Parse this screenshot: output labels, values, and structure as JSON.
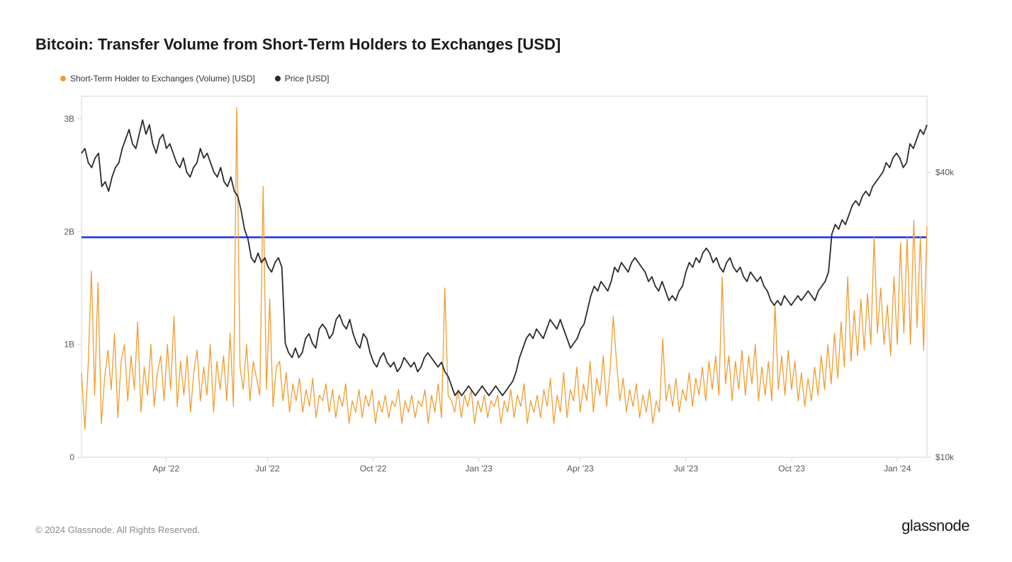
{
  "title": "Bitcoin: Transfer Volume from Short-Term Holders to Exchanges [USD]",
  "legend": {
    "series1": {
      "label": "Short-Term Holder to Exchanges (Volume) [USD]",
      "color": "#f29b2e"
    },
    "series2": {
      "label": "Price [USD]",
      "color": "#2a2a2a"
    }
  },
  "copyright": "© 2024 Glassnode. All Rights Reserved.",
  "brand": "glassnode",
  "chart": {
    "type": "line-dual-axis",
    "background_color": "#ffffff",
    "grid_color": "#d6d6d6",
    "reference_line": {
      "y_value_left": 1.95,
      "color": "#1a2ef5",
      "width": 2.5
    },
    "x_axis": {
      "ticks": [
        "Apr '22",
        "Jul '22",
        "Oct '22",
        "Jan '23",
        "Apr '23",
        "Jul '23",
        "Oct '23",
        "Jan '24"
      ],
      "tick_positions": [
        0.1,
        0.22,
        0.345,
        0.47,
        0.59,
        0.715,
        0.84,
        0.965
      ]
    },
    "y_left": {
      "label_suffix": "B",
      "min": 0,
      "max": 3.2,
      "ticks": [
        0,
        1,
        2,
        3
      ],
      "tick_labels": [
        "0",
        "1B",
        "2B",
        "3B"
      ]
    },
    "y_right": {
      "min": 10000,
      "max": 48000,
      "ticks": [
        10000,
        40000
      ],
      "tick_labels": [
        "$10k",
        "$40k"
      ]
    },
    "series_volume": {
      "color": "#f29b2e",
      "line_width": 1.3,
      "values": [
        0.75,
        0.25,
        0.8,
        1.65,
        0.55,
        1.55,
        0.3,
        0.7,
        0.95,
        0.6,
        1.1,
        0.35,
        0.85,
        1.0,
        0.5,
        0.9,
        0.6,
        1.2,
        0.4,
        0.8,
        0.55,
        1.0,
        0.45,
        0.75,
        0.9,
        0.5,
        1.0,
        0.6,
        1.25,
        0.45,
        0.85,
        0.55,
        0.9,
        0.4,
        0.75,
        0.95,
        0.5,
        0.8,
        0.55,
        1.0,
        0.4,
        0.85,
        0.6,
        0.9,
        0.5,
        1.1,
        0.45,
        3.1,
        0.8,
        0.6,
        1.0,
        0.5,
        0.85,
        0.7,
        0.55,
        2.4,
        0.6,
        1.4,
        0.45,
        0.8,
        0.85,
        0.5,
        0.75,
        0.4,
        0.65,
        0.5,
        0.7,
        0.4,
        0.6,
        0.45,
        0.7,
        0.35,
        0.55,
        0.5,
        0.65,
        0.4,
        0.6,
        0.35,
        0.55,
        0.45,
        0.65,
        0.3,
        0.5,
        0.4,
        0.6,
        0.35,
        0.55,
        0.45,
        0.6,
        0.3,
        0.5,
        0.4,
        0.55,
        0.35,
        0.5,
        0.45,
        0.6,
        0.3,
        0.5,
        0.4,
        0.55,
        0.35,
        0.5,
        0.45,
        0.6,
        0.3,
        0.55,
        0.4,
        0.65,
        0.35,
        1.5,
        0.55,
        0.5,
        0.4,
        0.6,
        0.35,
        0.55,
        0.45,
        0.6,
        0.3,
        0.5,
        0.4,
        0.55,
        0.35,
        0.5,
        0.45,
        0.55,
        0.3,
        0.5,
        0.4,
        0.6,
        0.35,
        0.55,
        0.45,
        0.65,
        0.3,
        0.5,
        0.4,
        0.55,
        0.35,
        0.6,
        0.45,
        0.7,
        0.3,
        0.55,
        0.4,
        0.75,
        0.35,
        0.6,
        0.5,
        0.8,
        0.4,
        0.65,
        0.5,
        0.85,
        0.4,
        0.7,
        0.55,
        0.9,
        0.45,
        0.75,
        1.25,
        0.85,
        0.5,
        0.7,
        0.4,
        0.6,
        0.45,
        0.65,
        0.35,
        0.55,
        0.4,
        0.6,
        0.3,
        0.5,
        0.4,
        1.05,
        0.5,
        0.65,
        0.45,
        0.7,
        0.4,
        0.6,
        0.5,
        0.75,
        0.45,
        0.7,
        0.55,
        0.8,
        0.5,
        0.85,
        0.6,
        0.9,
        0.55,
        1.6,
        0.65,
        0.9,
        0.5,
        0.85,
        0.6,
        0.95,
        0.55,
        0.9,
        0.65,
        1.0,
        0.5,
        0.8,
        0.55,
        0.85,
        0.5,
        1.35,
        0.6,
        0.9,
        0.55,
        0.95,
        0.6,
        0.85,
        0.5,
        0.75,
        0.45,
        0.7,
        0.5,
        0.8,
        0.55,
        0.9,
        0.6,
        1.0,
        0.65,
        1.1,
        0.7,
        1.2,
        0.8,
        1.6,
        0.85,
        1.3,
        0.9,
        1.4,
        0.95,
        1.45,
        1.0,
        1.95,
        1.1,
        1.5,
        1.0,
        1.35,
        0.9,
        1.6,
        1.0,
        1.9,
        1.1,
        1.95,
        1.0,
        2.1,
        1.15,
        1.95,
        0.95,
        2.05
      ]
    },
    "series_price": {
      "color": "#2a2a2a",
      "line_width": 1.8,
      "values": [
        42000,
        42500,
        41000,
        40500,
        41500,
        42000,
        38500,
        39000,
        38000,
        39500,
        40500,
        41000,
        42500,
        43500,
        44500,
        43000,
        42500,
        44000,
        45500,
        44000,
        45000,
        43000,
        42000,
        43500,
        44000,
        42500,
        43000,
        42000,
        41000,
        40500,
        41500,
        40000,
        39500,
        40500,
        41000,
        42500,
        41500,
        42000,
        41000,
        40000,
        39500,
        40500,
        39000,
        38500,
        39500,
        38000,
        37500,
        36000,
        34000,
        33000,
        31000,
        30500,
        31500,
        30500,
        31000,
        30000,
        29500,
        30500,
        31000,
        30000,
        22000,
        21000,
        20500,
        21500,
        20500,
        21000,
        22500,
        23000,
        22000,
        21500,
        23500,
        24000,
        23500,
        22500,
        23000,
        24500,
        25000,
        24000,
        23500,
        24500,
        23000,
        22000,
        21500,
        23000,
        22500,
        21000,
        20000,
        19500,
        20500,
        21000,
        20000,
        19500,
        20000,
        19000,
        19500,
        20500,
        20000,
        19500,
        20000,
        19000,
        19500,
        20500,
        21000,
        20500,
        20000,
        19500,
        20000,
        19000,
        18500,
        17500,
        16500,
        17000,
        16500,
        17000,
        17500,
        17000,
        16500,
        17000,
        17500,
        17000,
        16500,
        17000,
        17500,
        17000,
        16500,
        17000,
        17500,
        18000,
        19000,
        20500,
        21500,
        22500,
        23000,
        22500,
        23500,
        23000,
        22500,
        23500,
        24500,
        24000,
        23500,
        24500,
        23500,
        22500,
        21500,
        22000,
        22500,
        23500,
        24000,
        25500,
        27000,
        28000,
        27500,
        28500,
        28000,
        27500,
        28500,
        30000,
        29500,
        30500,
        30000,
        29500,
        30500,
        31000,
        30500,
        30000,
        29500,
        28500,
        29000,
        28000,
        27500,
        28500,
        27500,
        26500,
        27000,
        26500,
        27500,
        28000,
        29500,
        30500,
        30000,
        31000,
        30500,
        31500,
        32000,
        31500,
        30500,
        31000,
        30000,
        29500,
        30500,
        31000,
        30000,
        29500,
        30000,
        29000,
        28500,
        29500,
        29000,
        28500,
        29000,
        28000,
        27500,
        26500,
        26000,
        26500,
        26000,
        27000,
        26500,
        26000,
        26500,
        27000,
        26500,
        27000,
        27500,
        27000,
        26500,
        27500,
        28000,
        28500,
        29500,
        33500,
        34500,
        34000,
        35000,
        34500,
        35500,
        36500,
        37000,
        36500,
        37500,
        38000,
        37500,
        38500,
        39000,
        39500,
        40000,
        41000,
        40500,
        41500,
        42000,
        41500,
        40500,
        41000,
        43000,
        42500,
        43500,
        44500,
        44000,
        45000
      ]
    }
  }
}
